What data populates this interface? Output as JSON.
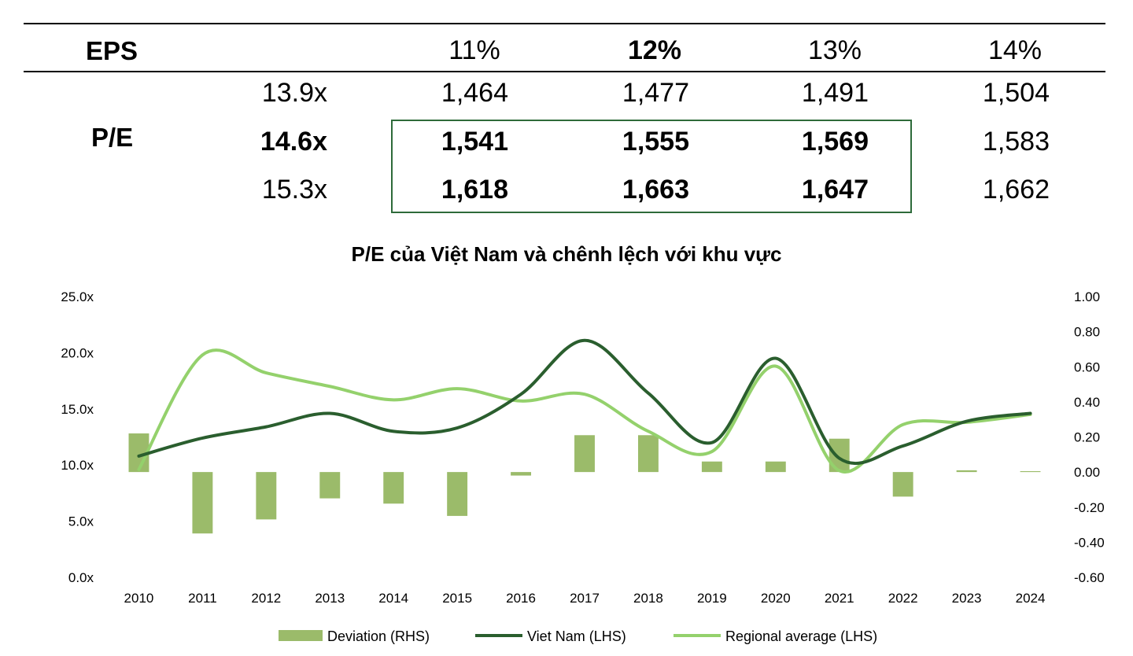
{
  "table": {
    "eps_label": "EPS",
    "pe_label": "P/E",
    "eps_headers": [
      "11%",
      "12%",
      "13%",
      "14%"
    ],
    "eps_header_bold": [
      false,
      true,
      false,
      false
    ],
    "rows": [
      {
        "pe": "13.9x",
        "pe_bold": false,
        "values": [
          "1,464",
          "1,477",
          "1,491",
          "1,504"
        ],
        "bold": [
          false,
          false,
          false,
          false
        ]
      },
      {
        "pe": "14.6x",
        "pe_bold": true,
        "values": [
          "1,541",
          "1,555",
          "1,569",
          "1,583"
        ],
        "bold": [
          true,
          true,
          true,
          false
        ]
      },
      {
        "pe": "15.3x",
        "pe_bold": false,
        "values": [
          "1,618",
          "1,663",
          "1,647",
          "1,662"
        ],
        "bold": [
          true,
          true,
          true,
          false
        ]
      }
    ],
    "highlight_color": "#2e6b3a"
  },
  "chart_data": {
    "type": "bar+line",
    "title": "P/E của Việt Nam và chênh lệch với khu vực",
    "categories": [
      "2010",
      "2011",
      "2012",
      "2013",
      "2014",
      "2015",
      "2016",
      "2017",
      "2018",
      "2019",
      "2020",
      "2021",
      "2022",
      "2023",
      "2024"
    ],
    "left_axis": {
      "min": 0,
      "max": 25,
      "ticks": [
        "0.0x",
        "5.0x",
        "10.0x",
        "15.0x",
        "20.0x",
        "25.0x"
      ]
    },
    "right_axis": {
      "min": -0.6,
      "max": 1.0,
      "ticks": [
        "-0.60",
        "-0.40",
        "-0.20",
        "0.00",
        "0.20",
        "0.40",
        "0.60",
        "0.80",
        "1.00"
      ]
    },
    "grid": false,
    "legend_position": "bottom",
    "series": [
      {
        "name": "Deviation (RHS)",
        "type": "bar",
        "axis": "right",
        "color": "#9bbb6a",
        "values": [
          0.22,
          -0.35,
          -0.27,
          -0.15,
          -0.18,
          -0.25,
          -0.02,
          0.21,
          0.21,
          0.06,
          0.06,
          0.19,
          -0.14,
          0.01,
          0.005
        ]
      },
      {
        "name": "Viet Nam (LHS)",
        "type": "line",
        "axis": "left",
        "color": "#2a5e2e",
        "values": [
          10.8,
          12.4,
          13.4,
          14.6,
          13.0,
          13.3,
          16.3,
          21.1,
          16.4,
          12.0,
          19.5,
          10.6,
          11.7,
          13.9,
          14.6
        ]
      },
      {
        "name": "Regional average (LHS)",
        "type": "line",
        "axis": "left",
        "color": "#94d16c",
        "values": [
          9.6,
          19.8,
          18.2,
          17.0,
          15.8,
          16.8,
          15.7,
          16.3,
          13.0,
          11.2,
          18.8,
          9.5,
          13.6,
          13.8,
          14.5
        ]
      }
    ]
  }
}
